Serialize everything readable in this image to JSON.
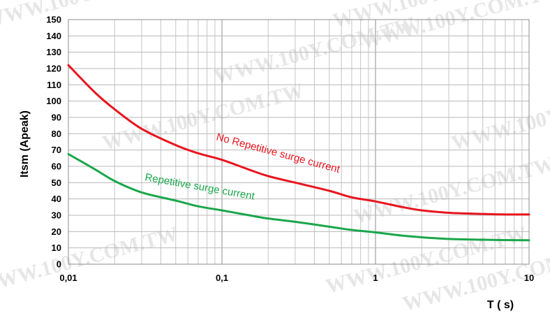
{
  "chart_data": {
    "type": "line",
    "xlabel": "T ( s)",
    "ylabel": "Itsm (Apeak)",
    "x_scale": "log",
    "xlim": [
      0.01,
      10
    ],
    "ylim": [
      0,
      150
    ],
    "x_ticks": [
      0.01,
      0.1,
      1,
      10
    ],
    "x_tick_labels": [
      "0,01",
      "0,1",
      "1",
      "10"
    ],
    "y_ticks": [
      0,
      10,
      20,
      30,
      40,
      50,
      60,
      70,
      80,
      90,
      100,
      110,
      120,
      130,
      140,
      150
    ],
    "grid": true,
    "series": [
      {
        "name": "No Repetitive surge current",
        "color": "#e8141e",
        "x": [
          0.01,
          0.015,
          0.02,
          0.03,
          0.05,
          0.07,
          0.1,
          0.15,
          0.2,
          0.3,
          0.5,
          0.7,
          1,
          1.5,
          2,
          3,
          5,
          7,
          10
        ],
        "y": [
          122,
          105,
          95,
          83,
          73,
          68,
          64,
          58,
          54,
          50,
          45,
          41,
          38.5,
          35,
          33,
          31.5,
          30.8,
          30.5,
          30.5
        ]
      },
      {
        "name": "Repetitive surge current",
        "color": "#1aa64b",
        "x": [
          0.01,
          0.015,
          0.02,
          0.03,
          0.05,
          0.07,
          0.1,
          0.15,
          0.2,
          0.3,
          0.5,
          0.7,
          1,
          1.5,
          2,
          3,
          5,
          7,
          10
        ],
        "y": [
          67.5,
          58,
          51,
          44,
          39,
          35.5,
          33,
          30,
          28,
          26,
          23,
          21,
          19.5,
          17.5,
          16.5,
          15.5,
          15,
          14.8,
          14.7
        ]
      }
    ]
  },
  "watermark": {
    "text": "WWW.100Y.COM.TW"
  }
}
